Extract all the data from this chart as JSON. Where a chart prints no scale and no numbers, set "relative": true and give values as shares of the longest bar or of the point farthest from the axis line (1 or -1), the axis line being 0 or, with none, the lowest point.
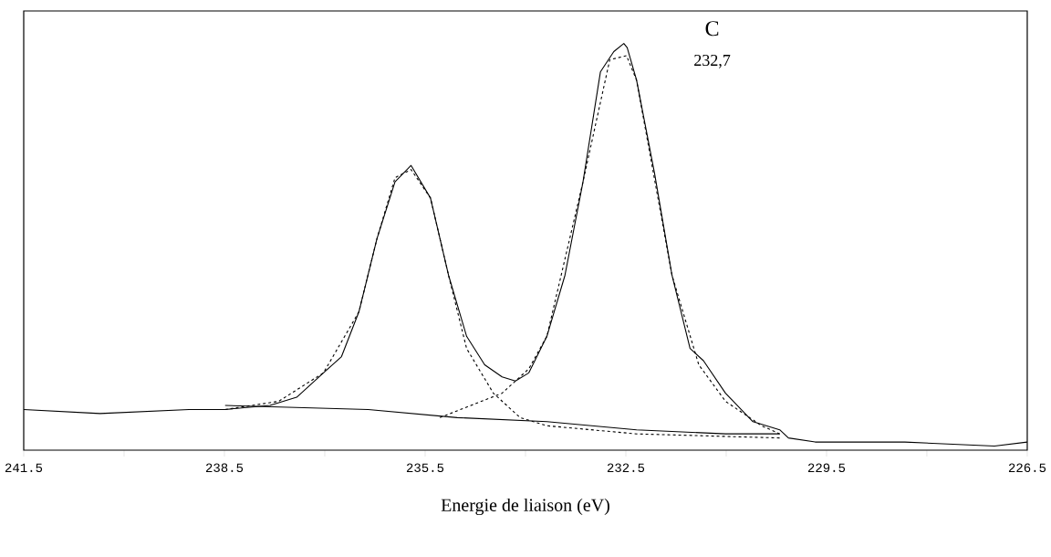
{
  "chart_data": {
    "type": "line",
    "relative": true,
    "xlabel": "Energie de liaison (eV)",
    "xlim": [
      241.5,
      226.5
    ],
    "xticks": [
      241.5,
      {
        "value": 240,
        "label": null
      },
      238.5,
      {
        "value": 237,
        "label": null
      },
      235.5,
      {
        "value": 234,
        "label": null
      },
      232.5,
      {
        "value": 231,
        "label": null
      },
      229.5,
      {
        "value": 228,
        "label": null
      },
      226.5
    ],
    "annotations": [
      "C",
      "232,7"
    ],
    "series": [
      {
        "color": "#000000",
        "line_style": "solid",
        "x": [
          241.5,
          240.36,
          239.03,
          238.49,
          237.82,
          237.42,
          237.02,
          236.75,
          236.49,
          236.22,
          235.95,
          235.71,
          235.42,
          235.15,
          234.88,
          234.61,
          234.35,
          234.15,
          233.95,
          233.68,
          233.41,
          233.14,
          232.88,
          232.68,
          232.53,
          232.48,
          232.34,
          232.07,
          231.81,
          231.54,
          231.34,
          231.01,
          230.6,
          230.2,
          230.07,
          229.67,
          228.33,
          226.99,
          226.5
        ],
        "values": [
          0.1,
          0.09,
          0.1,
          0.1,
          0.11,
          0.13,
          0.19,
          0.23,
          0.34,
          0.52,
          0.66,
          0.7,
          0.62,
          0.43,
          0.28,
          0.21,
          0.18,
          0.17,
          0.19,
          0.28,
          0.43,
          0.66,
          0.93,
          0.98,
          1.0,
          0.99,
          0.91,
          0.68,
          0.43,
          0.25,
          0.22,
          0.14,
          0.07,
          0.05,
          0.03,
          0.02,
          0.02,
          0.01,
          0.02
        ]
      },
      {
        "color": "#000000",
        "line_style": "dashed",
        "x": [
          238.49,
          237.69,
          237.02,
          236.49,
          236.22,
          235.95,
          235.71,
          235.42,
          235.15,
          234.88,
          234.48,
          234.08,
          233.68,
          232.34,
          230.2
        ],
        "values": [
          0.1,
          0.12,
          0.19,
          0.34,
          0.52,
          0.67,
          0.69,
          0.62,
          0.43,
          0.25,
          0.14,
          0.08,
          0.06,
          0.04,
          0.03
        ]
      },
      {
        "color": "#000000",
        "line_style": "dashed",
        "x": [
          235.28,
          234.35,
          233.95,
          233.68,
          233.14,
          232.74,
          232.49,
          232.34,
          231.81,
          231.41,
          231.01,
          230.47,
          230.2
        ],
        "values": [
          0.08,
          0.14,
          0.2,
          0.28,
          0.66,
          0.96,
          0.97,
          0.91,
          0.43,
          0.21,
          0.12,
          0.06,
          0.04
        ]
      },
      {
        "color": "#000000",
        "line_style": "solid",
        "x": [
          238.49,
          236.35,
          235.02,
          233.68,
          232.34,
          231.01,
          230.2
        ],
        "values": [
          0.11,
          0.1,
          0.08,
          0.07,
          0.05,
          0.04,
          0.04
        ]
      }
    ]
  }
}
